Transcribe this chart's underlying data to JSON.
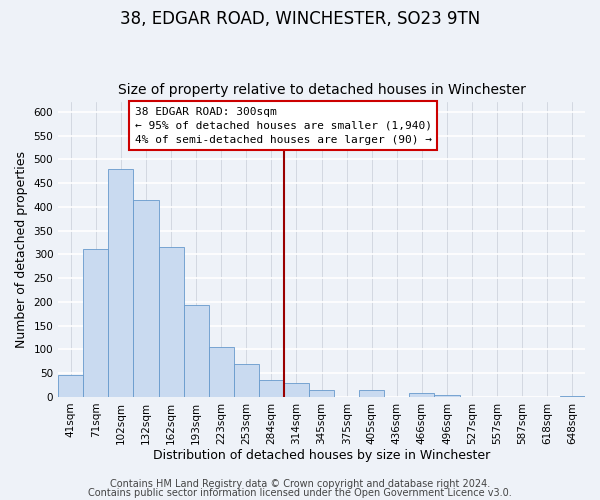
{
  "title": "38, EDGAR ROAD, WINCHESTER, SO23 9TN",
  "subtitle": "Size of property relative to detached houses in Winchester",
  "xlabel": "Distribution of detached houses by size in Winchester",
  "ylabel": "Number of detached properties",
  "bar_labels": [
    "41sqm",
    "71sqm",
    "102sqm",
    "132sqm",
    "162sqm",
    "193sqm",
    "223sqm",
    "253sqm",
    "284sqm",
    "314sqm",
    "345sqm",
    "375sqm",
    "405sqm",
    "436sqm",
    "466sqm",
    "496sqm",
    "527sqm",
    "557sqm",
    "587sqm",
    "618sqm",
    "648sqm"
  ],
  "bar_values": [
    46,
    311,
    480,
    415,
    315,
    193,
    105,
    69,
    35,
    30,
    14,
    0,
    14,
    0,
    9,
    5,
    0,
    0,
    0,
    0,
    2
  ],
  "bar_color": "#c9daf0",
  "bar_edge_color": "#6699cc",
  "vline_color": "#990000",
  "annotation_title": "38 EDGAR ROAD: 300sqm",
  "annotation_line1": "← 95% of detached houses are smaller (1,940)",
  "annotation_line2": "4% of semi-detached houses are larger (90) →",
  "annotation_box_edgecolor": "#cc0000",
  "ylim": [
    0,
    620
  ],
  "yticks": [
    0,
    50,
    100,
    150,
    200,
    250,
    300,
    350,
    400,
    450,
    500,
    550,
    600
  ],
  "footer1": "Contains HM Land Registry data © Crown copyright and database right 2024.",
  "footer2": "Contains public sector information licensed under the Open Government Licence v3.0.",
  "bg_color": "#eef2f8",
  "grid_color": "#d8dde8",
  "title_fontsize": 12,
  "subtitle_fontsize": 10,
  "axis_label_fontsize": 9,
  "tick_fontsize": 7.5,
  "footer_fontsize": 7
}
